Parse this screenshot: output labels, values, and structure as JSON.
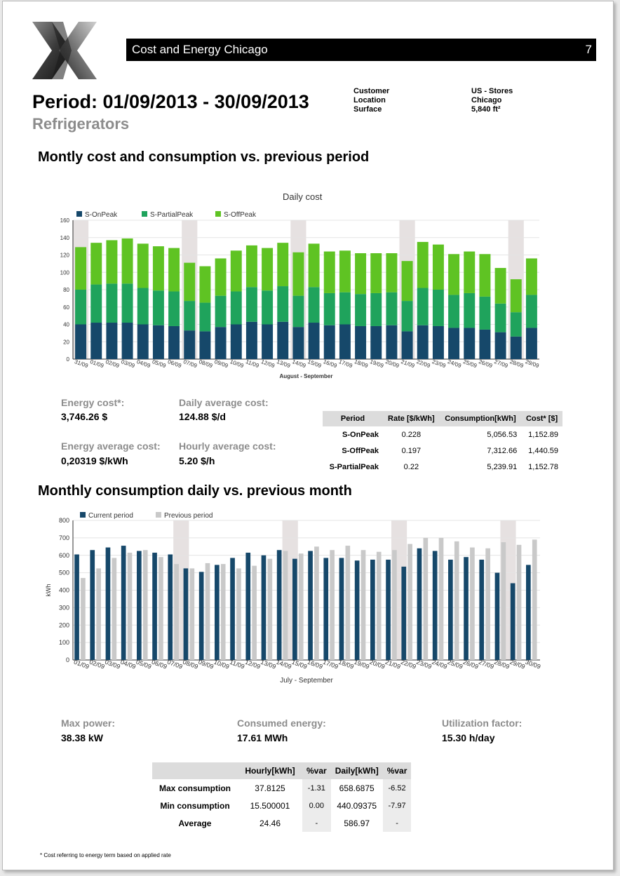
{
  "header": {
    "title": "Cost and Energy Chicago",
    "page_number": "7"
  },
  "period_title": "Period: 01/09/2013 - 30/09/2013",
  "subtitle": "Refrigerators",
  "meta": {
    "labels": [
      "Customer",
      "Location",
      "Surface"
    ],
    "values": [
      "US - Stores",
      "Chicago",
      "5,840 ft²"
    ]
  },
  "section1_title": "Montly cost and consumption vs. previous period",
  "section2_title": "Monthly consumption daily vs. previous month",
  "kpis1": {
    "energy_cost_label": "Energy cost*:",
    "energy_cost_value": "3,746.26 $",
    "daily_avg_label": "Daily average cost:",
    "daily_avg_value": "124.88 $/d",
    "energy_avg_label": "Energy average cost:",
    "energy_avg_value": "0,20319 $/kWh",
    "hourly_avg_label": "Hourly average cost:",
    "hourly_avg_value": "5.20 $/h"
  },
  "rate_table": {
    "headers": [
      "Period",
      "Rate [$/kWh]",
      "Consumption[kWh]",
      "Cost* [$]"
    ],
    "rows": [
      [
        "S-OnPeak",
        "0.228",
        "5,056.53",
        "1,152.89"
      ],
      [
        "S-OffPeak",
        "0.197",
        "7,312.66",
        "1,440.59"
      ],
      [
        "S-PartialPeak",
        "0.22",
        "5,239.91",
        "1,152.78"
      ]
    ]
  },
  "kpis2": {
    "max_power_label": "Max power:",
    "max_power_value": "38.38 kW",
    "consumed_label": "Consumed energy:",
    "consumed_value": "17.61 MWh",
    "util_label": "Utilization factor:",
    "util_value": "15.30 h/day"
  },
  "consumption_table": {
    "headers": [
      "",
      "Hourly[kWh]",
      "%var",
      "Daily[kWh]",
      "%var"
    ],
    "rows": [
      [
        "Max consumption",
        "37.8125",
        "-1.31",
        "658.6875",
        "-6.52"
      ],
      [
        "Min consumption",
        "15.500001",
        "0.00",
        "440.09375",
        "-7.97"
      ],
      [
        "Average",
        "24.46",
        "-",
        "586.97",
        "-"
      ]
    ]
  },
  "footnote": "* Cost referring to energy term based on applied rate",
  "colors": {
    "onpeak": "#16486a",
    "partialpeak": "#1fa35c",
    "offpeak": "#5fc323",
    "current": "#16486a",
    "previous": "#c9c9c9",
    "weekend_band": "#e6e1e1"
  },
  "chart_data": [
    {
      "type": "bar",
      "stacked": true,
      "title": "Daily cost",
      "xlabel": "August - September",
      "ylabel": "",
      "ylim": [
        0,
        160
      ],
      "yticks": [
        0,
        20,
        40,
        60,
        80,
        100,
        120,
        140,
        160
      ],
      "grid": true,
      "legend": "top-left",
      "categories": [
        "31/09",
        "01/09",
        "02/09",
        "03/09",
        "04/09",
        "05/09",
        "06/09",
        "07/09",
        "08/09",
        "09/09",
        "10/09",
        "11/09",
        "12/09",
        "13/09",
        "14/09",
        "15/09",
        "16/09",
        "17/09",
        "18/09",
        "19/09",
        "20/09",
        "21/09",
        "22/09",
        "23/09",
        "24/09",
        "25/09",
        "26/09",
        "27/09",
        "28/09",
        "29/09"
      ],
      "weekend_bands": [
        "31/09",
        "07/09",
        "14/09",
        "21/09",
        "28/09"
      ],
      "series": [
        {
          "name": "S-OnPeak",
          "values": [
            40,
            42,
            42,
            42,
            40,
            39,
            38,
            33,
            32,
            37,
            40,
            43,
            40,
            43,
            37,
            42,
            39,
            40,
            38,
            38,
            39,
            32,
            39,
            38,
            36,
            36,
            34,
            31,
            26,
            36
          ]
        },
        {
          "name": "S-PartialPeak",
          "values": [
            40,
            44,
            45,
            45,
            42,
            40,
            40,
            34,
            33,
            36,
            38,
            40,
            39,
            41,
            36,
            41,
            37,
            37,
            37,
            38,
            38,
            35,
            43,
            42,
            38,
            40,
            38,
            33,
            28,
            38
          ]
        },
        {
          "name": "S-OffPeak",
          "values": [
            49,
            48,
            50,
            52,
            51,
            51,
            50,
            44,
            42,
            43,
            47,
            48,
            49,
            50,
            50,
            50,
            48,
            48,
            47,
            46,
            45,
            46,
            53,
            52,
            47,
            48,
            49,
            41,
            38,
            42
          ]
        }
      ]
    },
    {
      "type": "bar",
      "title": "",
      "xlabel": "July - September",
      "ylabel": "kWh",
      "ylim": [
        0,
        800
      ],
      "yticks": [
        0,
        100,
        200,
        300,
        400,
        500,
        600,
        700,
        800
      ],
      "grid": true,
      "legend": "top-left",
      "categories": [
        "01/09",
        "02/09",
        "03/09",
        "04/09",
        "05/09",
        "06/09",
        "07/09",
        "08/09",
        "09/09",
        "10/09",
        "11/09",
        "12/09",
        "13/09",
        "14/09",
        "15/09",
        "16/09",
        "17/09",
        "18/09",
        "19/09",
        "20/09",
        "21/09",
        "22/09",
        "23/09",
        "24/09",
        "25/09",
        "26/09",
        "27/09",
        "28/09",
        "29/09",
        "30/09"
      ],
      "weekend_bands": [
        "07/09",
        "14/09",
        "21/09",
        "28/09"
      ],
      "series": [
        {
          "name": "Current period",
          "values": [
            605,
            630,
            645,
            655,
            625,
            615,
            605,
            525,
            505,
            545,
            585,
            615,
            600,
            630,
            580,
            625,
            585,
            585,
            570,
            575,
            575,
            535,
            640,
            625,
            575,
            590,
            575,
            500,
            440,
            545
          ]
        },
        {
          "name": "Previous period",
          "values": [
            470,
            525,
            585,
            615,
            630,
            590,
            550,
            525,
            555,
            550,
            525,
            540,
            580,
            625,
            610,
            650,
            630,
            655,
            630,
            620,
            630,
            665,
            700,
            700,
            680,
            645,
            640,
            675,
            660,
            690
          ]
        }
      ]
    }
  ]
}
